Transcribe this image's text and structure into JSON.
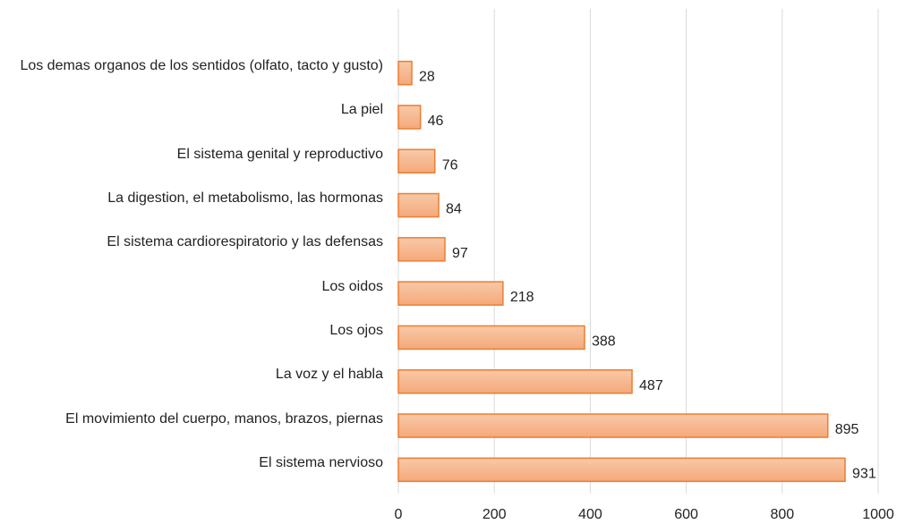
{
  "chart_data": {
    "type": "bar",
    "orientation": "horizontal",
    "categories": [
      "Los demas organos de los sentidos (olfato, tacto y gusto)",
      "La piel",
      "El sistema genital y reproductivo",
      "La digestion, el metabolismo, las hormonas",
      "El sistema cardiorespiratorio y las defensas",
      "Los oidos",
      "Los ojos",
      "La voz y el habla",
      "El movimiento del cuerpo, manos, brazos, piernas",
      "El sistema nervioso"
    ],
    "values": [
      28,
      46,
      76,
      84,
      97,
      218,
      388,
      487,
      895,
      931
    ],
    "color": "#f4b183",
    "edge_color": "#ed7d31",
    "xlim": [
      0,
      1000
    ],
    "xticks": [
      0,
      200,
      400,
      600,
      800,
      1000
    ],
    "grid": true
  }
}
